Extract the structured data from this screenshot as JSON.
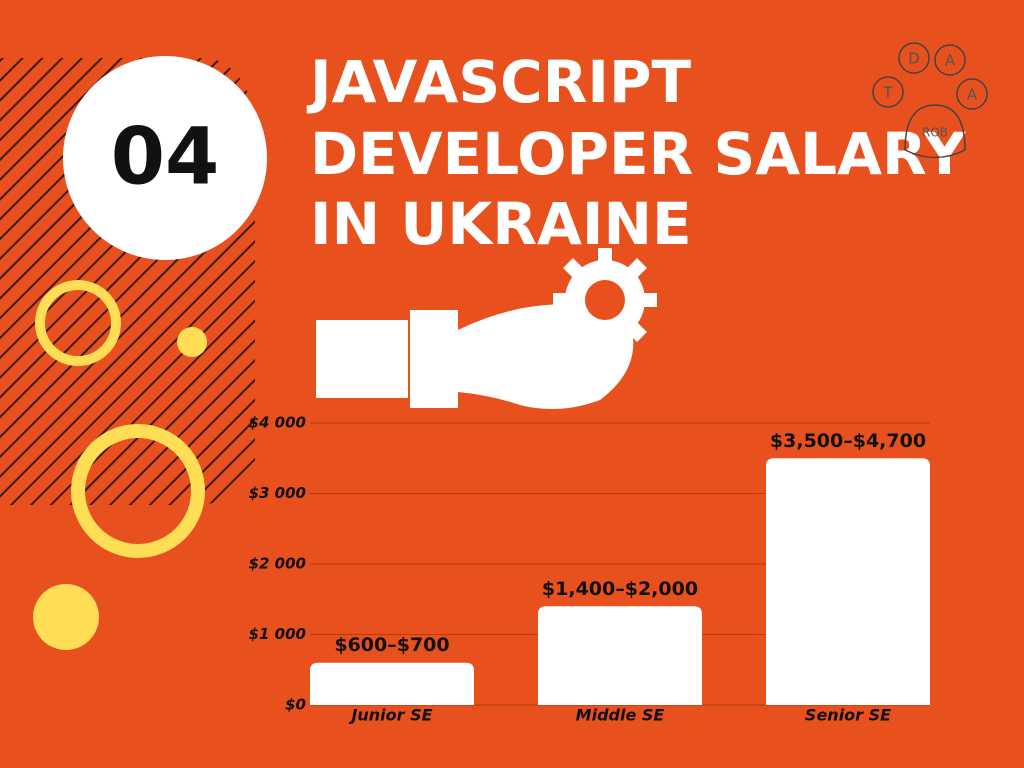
{
  "badge": "04",
  "title_lines": [
    "JAVASCRIPT",
    "DEVELOPER SALARY",
    "IN UKRAINE"
  ],
  "logo": {
    "letters": [
      "D",
      "A",
      "T",
      "A"
    ],
    "name": "ROB"
  },
  "chart_data": {
    "type": "bar",
    "categories": [
      "Junior SE",
      "Middle SE",
      "Senior SE"
    ],
    "values": [
      600,
      1400,
      3500
    ],
    "value_labels": [
      "$600–$700",
      "$1,400–$2,000",
      "$3,500–$4,700"
    ],
    "color": "#ffffff",
    "ylim": [
      0,
      4000
    ],
    "yticks": [
      {
        "value": 0,
        "label": "$0"
      },
      {
        "value": 1000,
        "label": "$1 000"
      },
      {
        "value": 2000,
        "label": "$2 000"
      },
      {
        "value": 3000,
        "label": "$3 000"
      },
      {
        "value": 4000,
        "label": "$4 000"
      }
    ],
    "grid": true
  }
}
